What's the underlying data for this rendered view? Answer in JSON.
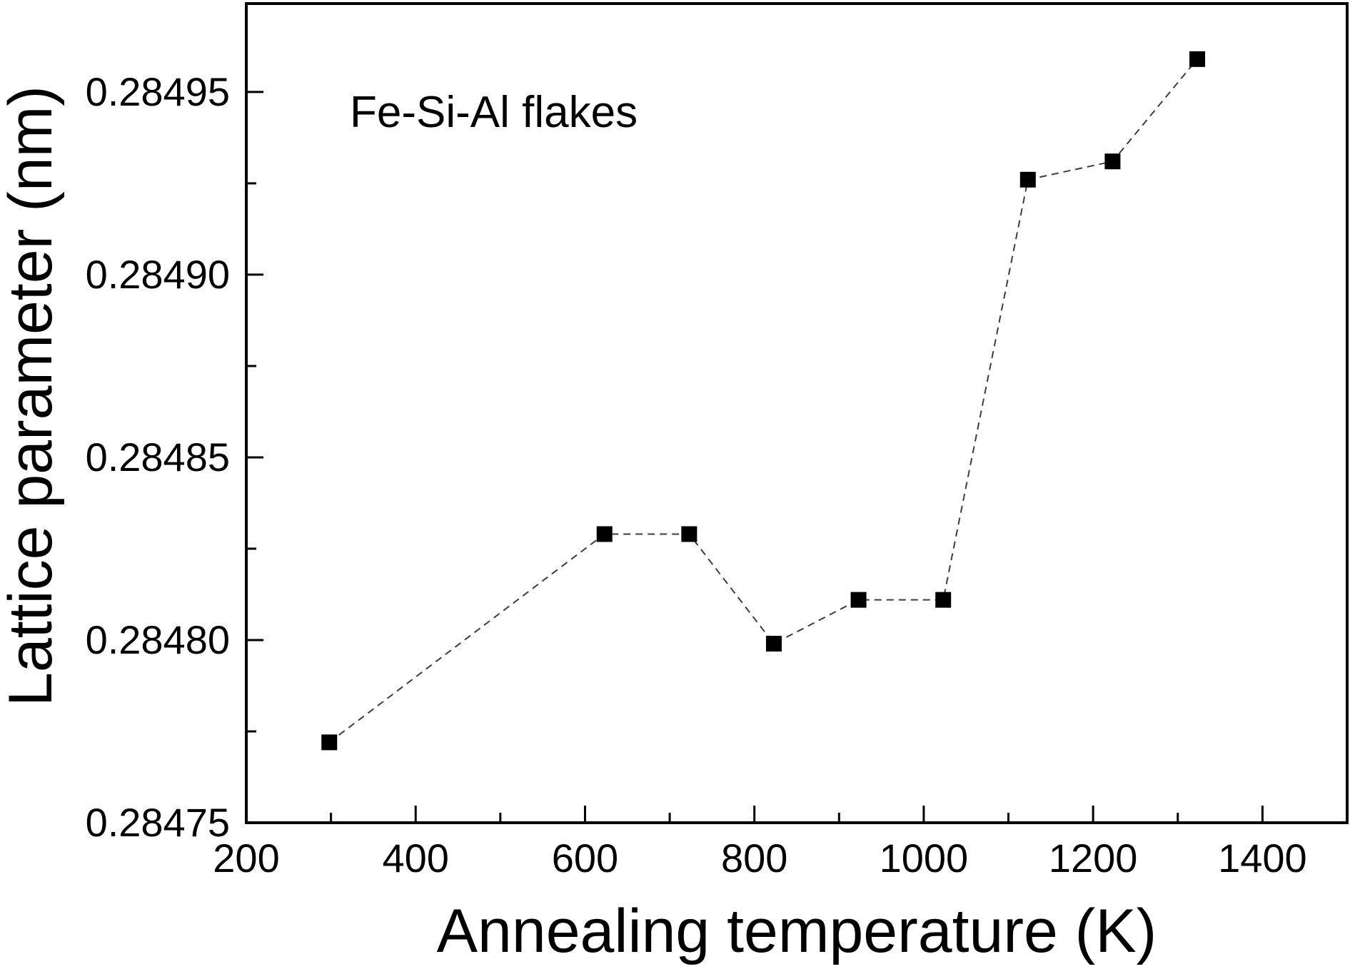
{
  "chart_data": {
    "type": "line",
    "title": "",
    "annotation": "Fe-Si-Al flakes",
    "xlabel": "Annealing temperature (K)",
    "ylabel": "Lattice parameter (nm)",
    "xlim": [
      200,
      1500
    ],
    "ylim": [
      0.28475,
      0.2849742
    ],
    "x_major_ticks": [
      200,
      400,
      600,
      800,
      1000,
      1200,
      1400
    ],
    "x_minor_ticks": [
      300,
      500,
      700,
      900,
      1100,
      1300,
      1500
    ],
    "y_major_ticks": [
      0.28475,
      0.2848,
      0.28485,
      0.2849,
      0.28495
    ],
    "y_minor_ticks": [
      0.284775,
      0.284825,
      0.284875,
      0.284925
    ],
    "y_tick_decimals": 5,
    "grid": false,
    "legend": "none",
    "ticks_direction": "in",
    "series": [
      {
        "name": "Fe-Si-Al flakes",
        "marker": "filled-square",
        "line_style": "dashed",
        "x": [
          298,
          623,
          723,
          823,
          923,
          1023,
          1123,
          1223,
          1323
        ],
        "y": [
          0.284772,
          0.284829,
          0.284829,
          0.284799,
          0.284811,
          0.284811,
          0.284926,
          0.284931,
          0.284959
        ]
      }
    ],
    "colors": {
      "background": "#ffffff",
      "frame": "#000000",
      "tick": "#000000",
      "text": "#000000",
      "line": "#3d3d3d",
      "marker": "#000000"
    }
  }
}
